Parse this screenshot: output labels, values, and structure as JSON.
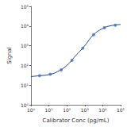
{
  "chart_data": {
    "type": "line",
    "x_label": "Calibrator Conc (pg/mL)",
    "y_label": "Signal",
    "log": true,
    "grid": false,
    "xlim": [
      1,
      100000
    ],
    "ylim": [
      1,
      100000
    ],
    "xticks": [
      {
        "value": 1,
        "label": "10⁰"
      },
      {
        "value": 10,
        "label": "10¹"
      },
      {
        "value": 100,
        "label": "10²"
      },
      {
        "value": 1000,
        "label": "10³"
      },
      {
        "value": 10000,
        "label": "10⁴"
      },
      {
        "value": 100000,
        "label": "10⁵"
      }
    ],
    "yticks": [
      {
        "value": 1,
        "label": "10⁰"
      },
      {
        "value": 10,
        "label": "10¹"
      },
      {
        "value": 100,
        "label": "10²"
      },
      {
        "value": 1000,
        "label": "10³"
      },
      {
        "value": 10000,
        "label": "10⁴"
      },
      {
        "value": 100000,
        "label": "10⁵"
      }
    ],
    "series": [
      {
        "type": "line",
        "color": "#1f3f8f",
        "line_style": "solid",
        "x": [
          1,
          3,
          10,
          30,
          100,
          300,
          1000,
          3000,
          10000,
          30000,
          100000
        ],
        "values": [
          27,
          30,
          34,
          48,
          100,
          300,
          1000,
          3500,
          7500,
          10500,
          12000
        ]
      },
      {
        "type": "scatter",
        "color": "#4a6fb5",
        "marker": "circle",
        "x": [
          3,
          12,
          49,
          195,
          781,
          3125,
          12500,
          50000
        ],
        "values": [
          30,
          36,
          60,
          180,
          750,
          3600,
          8200,
          11000
        ]
      }
    ]
  }
}
